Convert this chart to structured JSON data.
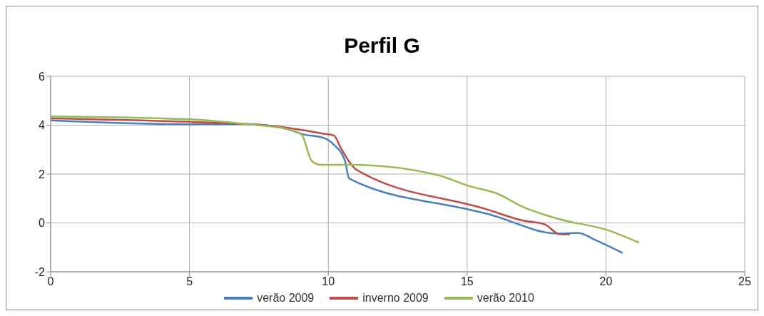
{
  "chart_data": {
    "type": "line",
    "title": "Perfil G",
    "xlim": [
      0,
      25
    ],
    "xticks": [
      0,
      5,
      10,
      15,
      20,
      25
    ],
    "ylim": [
      -2,
      6
    ],
    "yticks": [
      -2,
      0,
      2,
      4,
      6
    ],
    "grid": true,
    "legend": "bottom",
    "marker": "none",
    "line_style": "solid",
    "series": [
      {
        "name": "verão 2009",
        "color": "#4a7ebb",
        "x": [
          0,
          5,
          7,
          8.5,
          9.05,
          9.9,
          10.2,
          10.6,
          10.75,
          15,
          15.7,
          18.3,
          19,
          19.6,
          20.6
        ],
        "values": [
          4.2,
          4.04,
          4.05,
          3.85,
          3.64,
          3.45,
          3.2,
          2.55,
          1.82,
          0.56,
          0.38,
          -0.44,
          -0.41,
          -0.69,
          -1.23
        ]
      },
      {
        "name": "inverno 2009",
        "color": "#be4b48",
        "x": [
          0,
          5,
          7,
          8.5,
          9.9,
          10.2,
          10.45,
          11,
          15.7,
          17,
          17.8,
          18.3,
          18.7
        ],
        "values": [
          4.28,
          4.14,
          4.05,
          3.9,
          3.64,
          3.58,
          3.07,
          2.19,
          0.56,
          0.1,
          -0.06,
          -0.45,
          -0.47
        ]
      },
      {
        "name": "verão 2010",
        "color": "#98b954",
        "x": [
          0,
          5,
          7,
          8.5,
          9.05,
          9.4,
          9.7,
          10.9,
          13.9,
          15.1,
          16.1,
          17,
          18.3,
          20.1,
          21.2
        ],
        "values": [
          4.36,
          4.24,
          4.05,
          3.85,
          3.6,
          2.54,
          2.38,
          2.38,
          1.97,
          1.5,
          1.19,
          0.66,
          0.16,
          -0.31,
          -0.81
        ]
      }
    ]
  }
}
